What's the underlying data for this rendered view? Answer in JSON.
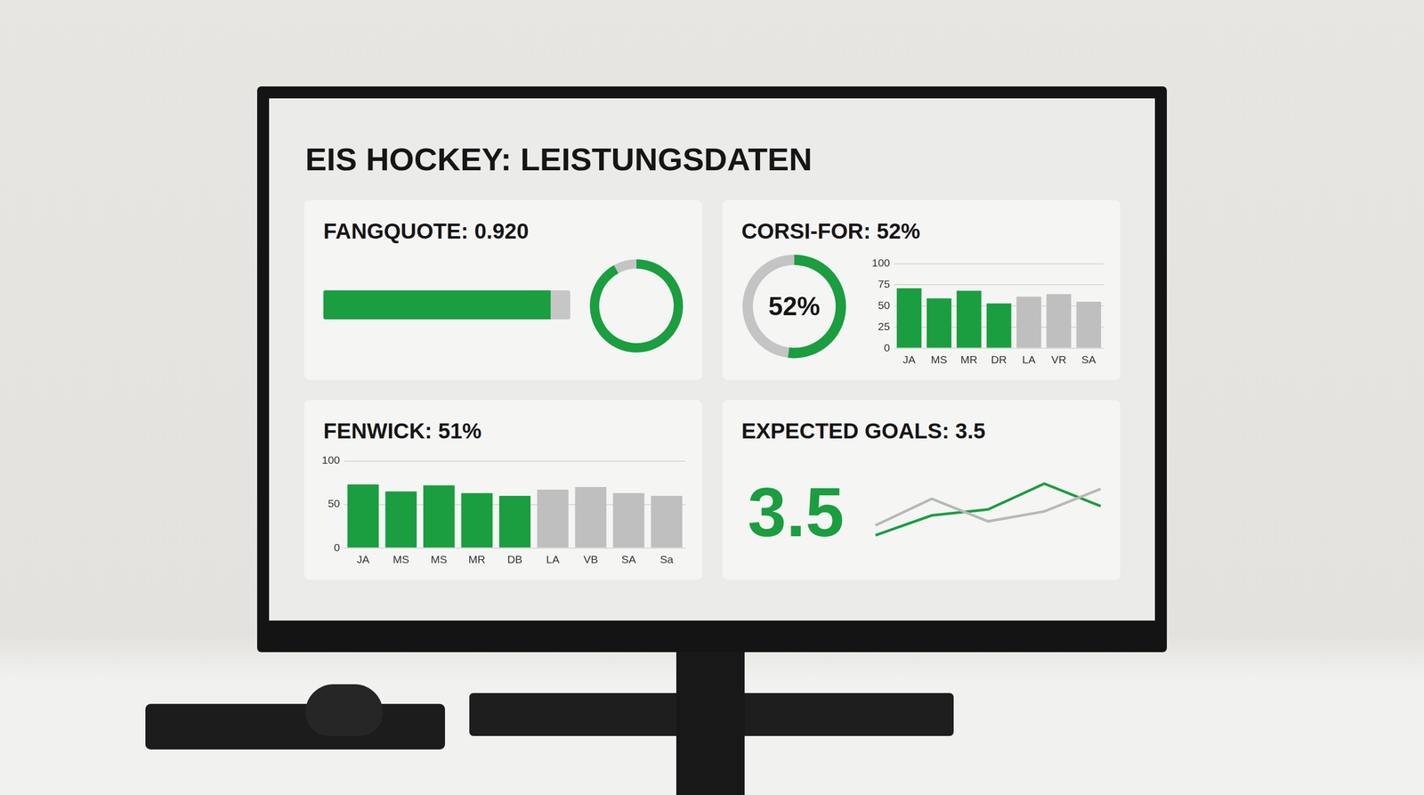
{
  "title": "EIS HOCKEY: LEISTUNGSDATEN",
  "chart_data": [
    {
      "type": "bar",
      "title": "FANGQUOTE: 0.920",
      "orientation": "horizontal",
      "categories": [
        null
      ],
      "values": [
        0.92
      ],
      "xlim": [
        0,
        1
      ],
      "tick_labels": false,
      "grid": false,
      "color": "#1a9e3f"
    },
    {
      "type": "gauge",
      "values": [
        0.92
      ],
      "ylim": [
        0,
        1
      ],
      "color": "#1a9e3f"
    },
    {
      "type": "gauge",
      "title": "CORSI-FOR: 52%",
      "values": [
        52
      ],
      "value_labels": [
        "52%"
      ],
      "ylim": [
        0,
        100
      ],
      "color": "#1a9e3f"
    },
    {
      "type": "bar",
      "categories": [
        "JA",
        "MS",
        "MR",
        "DR",
        "LA",
        "VR",
        "SA"
      ],
      "values": [
        71,
        59,
        68,
        53,
        61,
        64,
        55
      ],
      "colors": [
        "#1a9e3f",
        "#1a9e3f",
        "#1a9e3f",
        "#1a9e3f",
        "#bfbfbf",
        "#bfbfbf",
        "#bfbfbf"
      ],
      "ylim": [
        0,
        100
      ],
      "yticks": [
        0,
        25,
        50,
        75,
        100
      ],
      "grid": true
    },
    {
      "type": "bar",
      "title": "FENWICK: 51%",
      "categories": [
        "JA",
        "MS",
        "MS",
        "MR",
        "DB",
        "LA",
        "VB",
        "SA",
        "Sa"
      ],
      "values": [
        73,
        65,
        72,
        63,
        60,
        67,
        70,
        63,
        60
      ],
      "colors": [
        "#1a9e3f",
        "#1a9e3f",
        "#1a9e3f",
        "#1a9e3f",
        "#1a9e3f",
        "#bfbfbf",
        "#bfbfbf",
        "#bfbfbf",
        "#bfbfbf"
      ],
      "ylim": [
        0,
        100
      ],
      "yticks": [
        0,
        50,
        100
      ],
      "grid": true
    },
    {
      "type": "line",
      "title": "EXPECTED GOALS: 3.5",
      "kpi": 3.5,
      "categories": [
        null,
        null,
        null,
        null,
        null
      ],
      "series": [
        {
          "color": "#b8b8b8",
          "values": [
            25,
            65,
            31,
            46,
            80
          ]
        },
        {
          "color": "#1a9e3f",
          "values": [
            10,
            40,
            49,
            88,
            54
          ]
        }
      ],
      "ylim": [
        0,
        100
      ],
      "tick_labels": false,
      "grid": false,
      "marker": "none"
    }
  ]
}
